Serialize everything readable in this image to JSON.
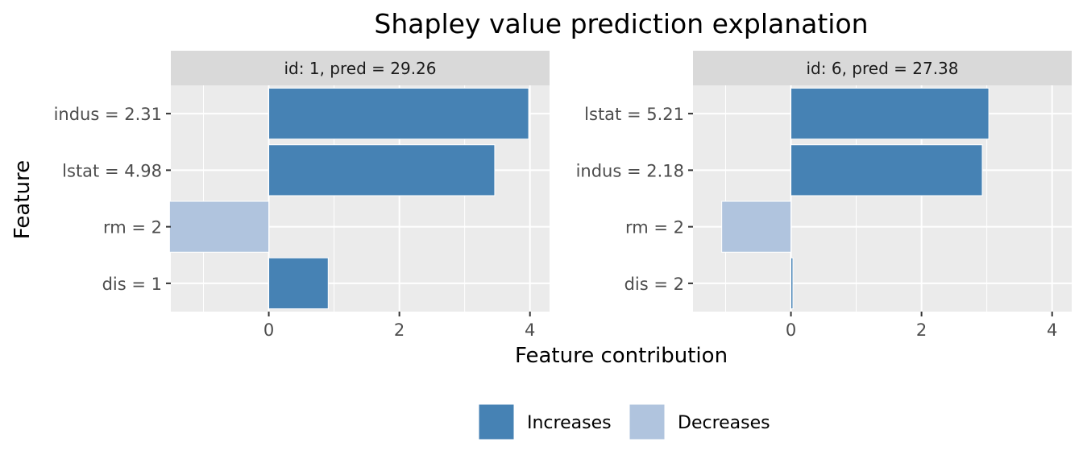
{
  "chart_data": {
    "type": "bar",
    "orientation": "horizontal",
    "title": "Shapley value prediction explanation",
    "xlabel": "Feature contribution",
    "ylabel": "Feature",
    "xlim": [
      -1.5,
      4.3
    ],
    "x_ticks": [
      0,
      2,
      4
    ],
    "grid": true,
    "legend_position": "bottom",
    "legend": [
      {
        "name": "Increases",
        "color": "#4682b4"
      },
      {
        "name": "Decreases",
        "color": "#b0c4de"
      }
    ],
    "panels": [
      {
        "label": "id: 1, pred = 29.26",
        "categories": [
          "indus = 2.31",
          "lstat = 4.98",
          "rm = 2",
          "dis = 1"
        ],
        "values": [
          3.98,
          3.46,
          -1.52,
          0.91
        ]
      },
      {
        "label": "id: 6, pred = 27.38",
        "categories": [
          "lstat = 5.21",
          "indus = 2.18",
          "rm = 2",
          "dis = 2"
        ],
        "values": [
          3.03,
          2.93,
          -1.06,
          0.03
        ]
      }
    ]
  }
}
